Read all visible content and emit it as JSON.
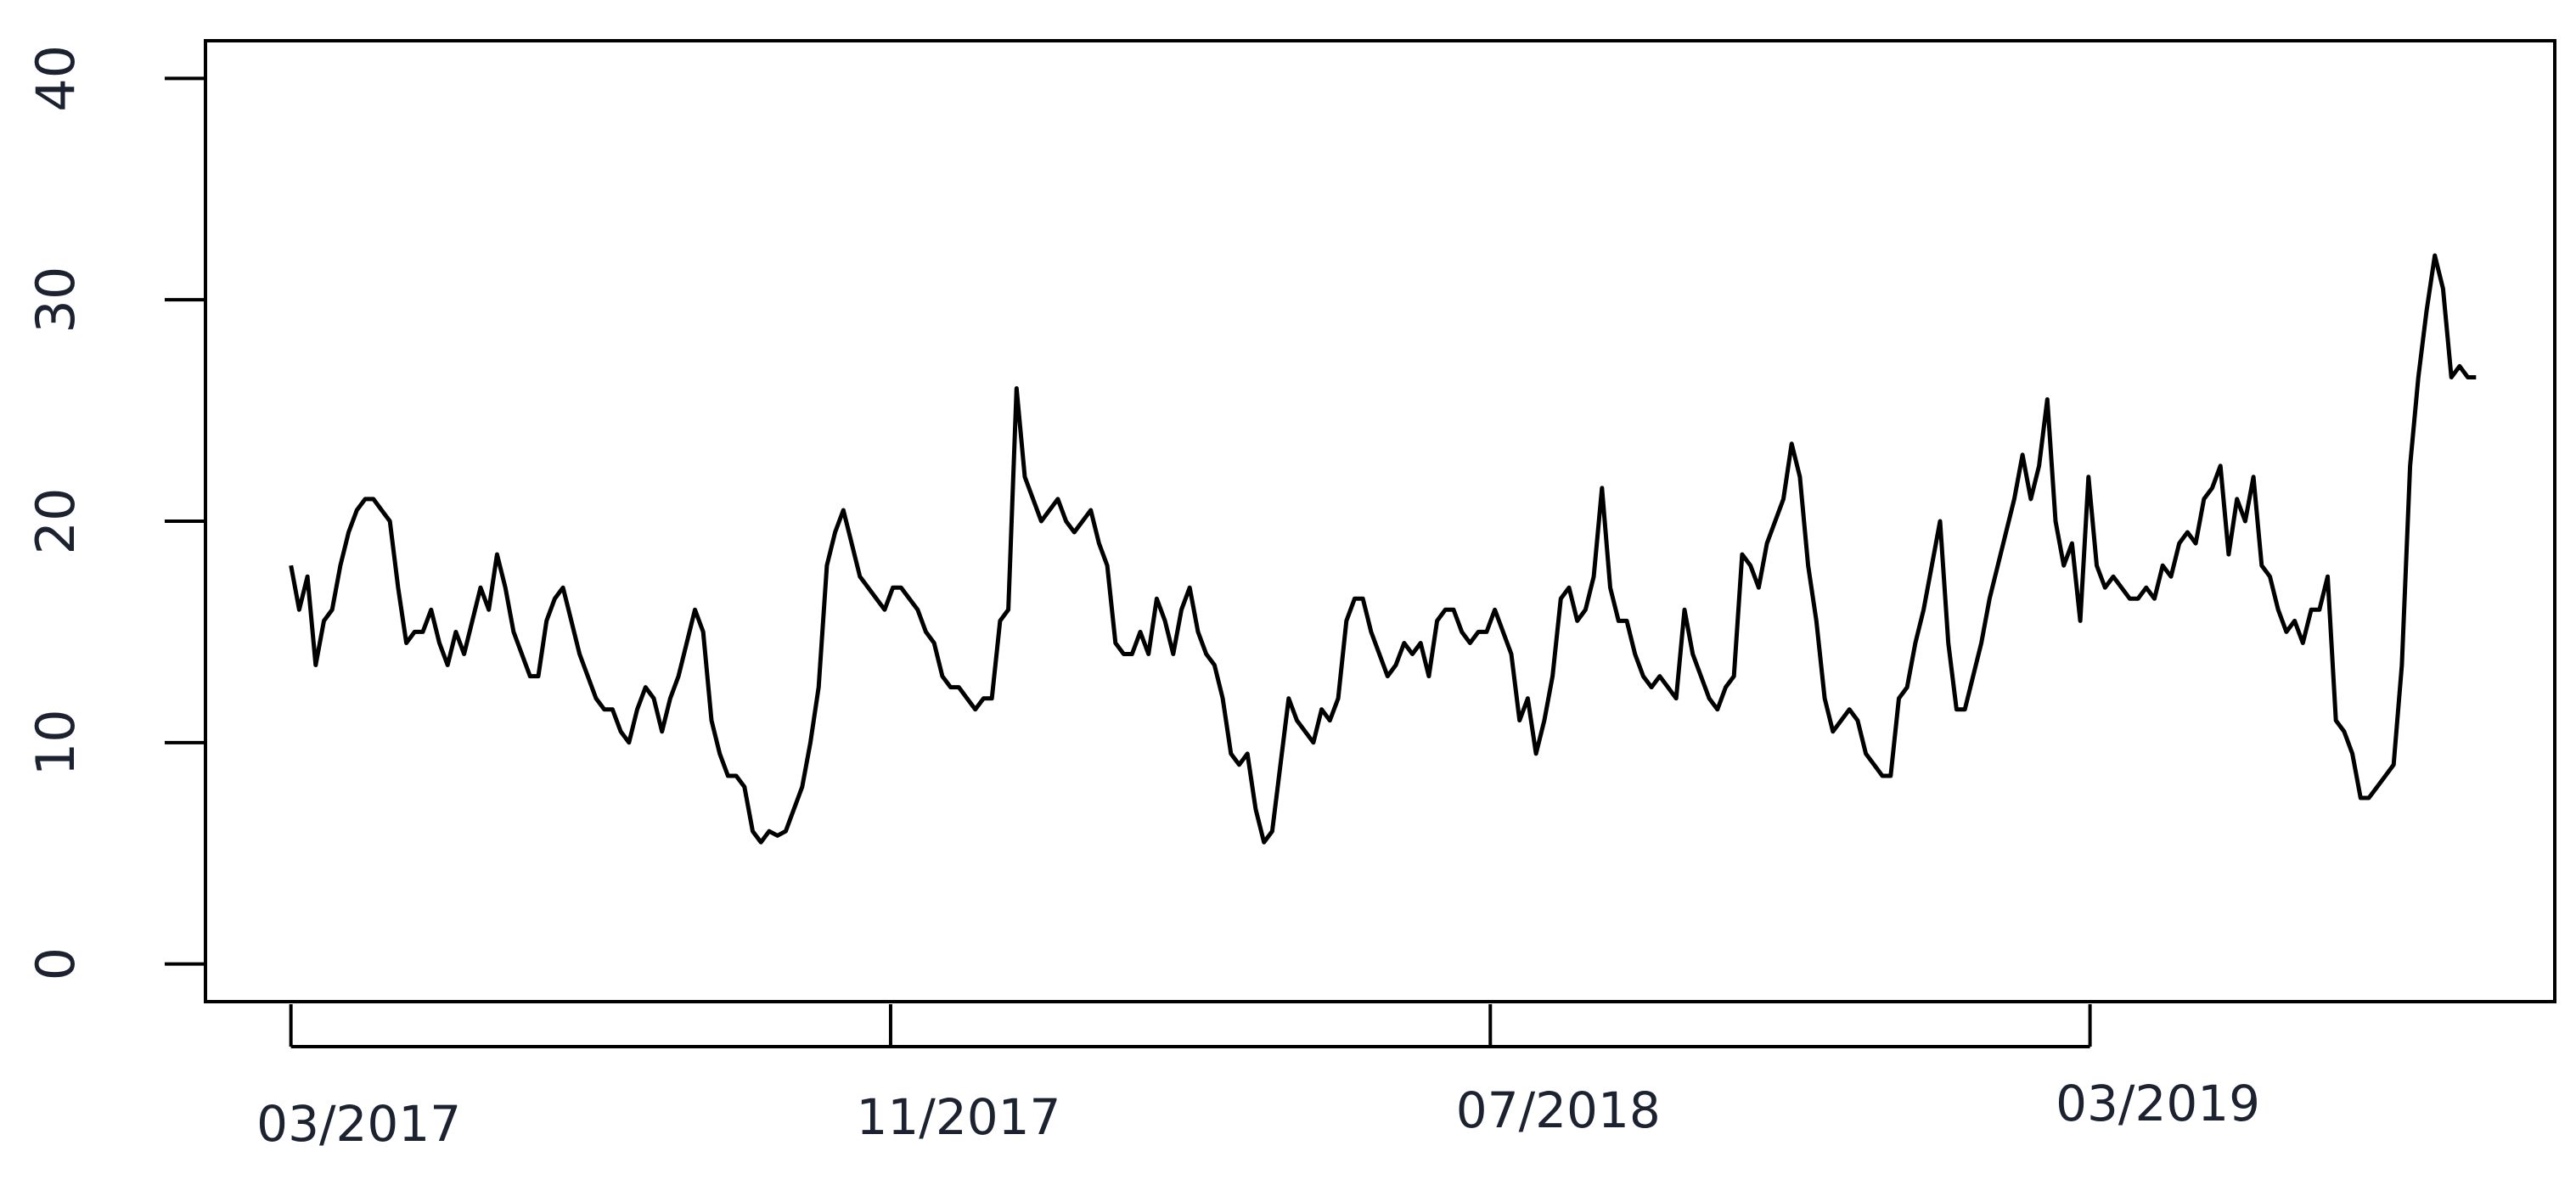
{
  "chart_data": {
    "type": "line",
    "color": "#000000",
    "xlim": [
      -1.14,
      30.2
    ],
    "ylim": [
      -1.7,
      41.7
    ],
    "xticks": [
      {
        "value": 0,
        "label": "03/2017"
      },
      {
        "value": 8,
        "label": "11/2017"
      },
      {
        "value": 16,
        "label": "07/2018"
      },
      {
        "value": 24,
        "label": "03/2019"
      }
    ],
    "yticks": [
      0,
      10,
      20,
      30,
      40
    ],
    "x": [
      0,
      0.11,
      0.22,
      0.33,
      0.44,
      0.55,
      0.66,
      0.77,
      0.88,
      0.99,
      1.1,
      1.21,
      1.32,
      1.43,
      1.54,
      1.65,
      1.76,
      1.87,
      1.98,
      2.09,
      2.2,
      2.31,
      2.42,
      2.53,
      2.64,
      2.75,
      2.86,
      2.97,
      3.08,
      3.19,
      3.3,
      3.41,
      3.52,
      3.63,
      3.74,
      3.85,
      3.96,
      4.07,
      4.18,
      4.29,
      4.4,
      4.51,
      4.62,
      4.73,
      4.84,
      4.95,
      5.06,
      5.17,
      5.28,
      5.39,
      5.5,
      5.61,
      5.72,
      5.83,
      5.94,
      6.05,
      6.16,
      6.27,
      6.38,
      6.49,
      6.6,
      6.71,
      6.82,
      6.93,
      7.04,
      7.15,
      7.26,
      7.37,
      7.48,
      7.59,
      7.7,
      7.81,
      7.92,
      8.03,
      8.14,
      8.25,
      8.36,
      8.47,
      8.58,
      8.69,
      8.8,
      8.91,
      9.02,
      9.13,
      9.24,
      9.35,
      9.46,
      9.57,
      9.68,
      9.79,
      9.9,
      10.01,
      10.12,
      10.23,
      10.34,
      10.45,
      10.56,
      10.67,
      10.78,
      10.89,
      11,
      11.11,
      11.22,
      11.33,
      11.44,
      11.55,
      11.66,
      11.77,
      11.88,
      11.99,
      12.1,
      12.21,
      12.32,
      12.43,
      12.54,
      12.65,
      12.76,
      12.87,
      12.98,
      13.09,
      13.2,
      13.31,
      13.42,
      13.53,
      13.64,
      13.75,
      13.86,
      13.97,
      14.08,
      14.19,
      14.3,
      14.41,
      14.52,
      14.63,
      14.74,
      14.85,
      14.96,
      15.07,
      15.18,
      15.29,
      15.4,
      15.51,
      15.62,
      15.73,
      15.84,
      15.95,
      16.06,
      16.17,
      16.28,
      16.39,
      16.5,
      16.61,
      16.72,
      16.83,
      16.94,
      17.05,
      17.16,
      17.27,
      17.38,
      17.49,
      17.6,
      17.71,
      17.82,
      17.93,
      18.04,
      18.15,
      18.26,
      18.37,
      18.48,
      18.59,
      18.7,
      18.81,
      18.92,
      19.03,
      19.14,
      19.25,
      19.36,
      19.47,
      19.58,
      19.69,
      19.8,
      19.91,
      20.02,
      20.13,
      20.24,
      20.35,
      20.46,
      20.57,
      20.68,
      20.79,
      20.9,
      21.01,
      21.12,
      21.23,
      21.34,
      21.45,
      21.56,
      21.67,
      21.78,
      21.89,
      22,
      22.11,
      22.22,
      22.33,
      22.44,
      22.55,
      22.66,
      22.77,
      22.88,
      22.99,
      23.1,
      23.21,
      23.32,
      23.43,
      23.54,
      23.65,
      23.76,
      23.87,
      23.98,
      24.09,
      24.2,
      24.31,
      24.42,
      24.53,
      24.64,
      24.75,
      24.86,
      24.97,
      25.08,
      25.19,
      25.3,
      25.41,
      25.52,
      25.63,
      25.74,
      25.85,
      25.96,
      26.07,
      26.18,
      26.29,
      26.4,
      26.51,
      26.62,
      26.73,
      26.84,
      26.95,
      27.06,
      27.17,
      27.28,
      27.39,
      27.5,
      27.61,
      27.72,
      27.83,
      27.94,
      28.05,
      28.16,
      28.27,
      28.38,
      28.49,
      28.6,
      28.71,
      28.82,
      28.93,
      29.04,
      29.15
    ],
    "values": [
      18,
      16,
      17.5,
      13.5,
      15.5,
      16,
      18,
      19.5,
      20.5,
      21,
      21,
      20.5,
      20,
      17,
      14.5,
      15,
      15,
      16,
      14.5,
      13.5,
      15,
      14,
      15.5,
      17,
      16,
      18.5,
      17,
      15,
      14,
      13,
      13,
      15.5,
      16.5,
      17,
      15.5,
      14,
      13,
      12,
      11.5,
      11.5,
      10.5,
      10,
      11.5,
      12.5,
      12,
      10.5,
      12,
      13,
      14.5,
      16,
      15,
      11,
      9.5,
      8.5,
      8.5,
      8,
      6,
      5.5,
      6,
      5.8,
      6,
      7,
      8,
      10,
      12.5,
      18,
      19.5,
      20.5,
      19,
      17.5,
      17,
      16.5,
      16,
      17,
      17,
      16.5,
      16,
      15,
      14.5,
      13,
      12.5,
      12.5,
      12,
      11.5,
      12,
      12,
      15.5,
      16,
      26,
      22,
      21,
      20,
      20.5,
      21,
      20,
      19.5,
      20,
      20.5,
      19,
      18,
      14.5,
      14,
      14,
      15,
      14,
      16.5,
      15.5,
      14,
      16,
      17,
      15,
      14,
      13.5,
      12,
      9.5,
      9,
      9.5,
      7,
      5.5,
      6,
      9,
      12,
      11,
      10.5,
      10,
      11.5,
      11,
      12,
      15.5,
      16.5,
      16.5,
      15,
      14,
      13,
      13.5,
      14.5,
      14,
      14.5,
      13,
      15.5,
      16,
      16,
      15,
      14.5,
      15,
      15,
      16,
      15,
      14,
      11,
      12,
      9.5,
      11,
      13,
      16.5,
      17,
      15.5,
      16,
      17.5,
      21.5,
      17,
      15.5,
      15.5,
      14,
      13,
      12.5,
      13,
      12.5,
      12,
      16,
      14,
      13,
      12,
      11.5,
      12.5,
      13,
      18.5,
      18,
      17,
      19,
      20,
      21,
      23.5,
      22,
      18,
      15.5,
      12,
      10.5,
      11,
      11.5,
      11,
      9.5,
      9,
      8.5,
      8.5,
      12,
      12.5,
      14.5,
      16,
      18,
      20,
      14.5,
      11.5,
      11.5,
      13,
      14.5,
      16.5,
      18,
      19.5,
      21,
      23,
      21,
      22.5,
      25.5,
      20,
      18,
      19,
      15.5,
      22,
      18,
      17,
      17.5,
      17,
      16.5,
      16.5,
      17,
      16.5,
      18,
      17.5,
      19,
      19.5,
      19,
      21,
      21.5,
      22.5,
      18.5,
      21,
      20,
      22,
      18,
      17.5,
      16,
      15,
      15.5,
      14.5,
      16,
      16,
      17.5,
      11,
      10.5,
      9.5,
      7.5,
      7.5,
      8,
      8.5,
      9,
      13.5,
      22.5,
      26.5,
      29.5,
      32,
      30.5,
      26.5,
      27,
      26.5,
      26.5
    ]
  }
}
